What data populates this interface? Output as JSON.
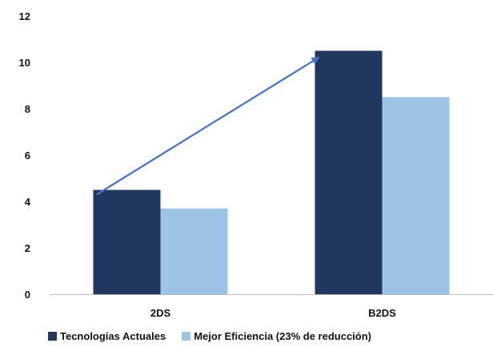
{
  "chart_data": {
    "type": "bar",
    "categories": [
      "2DS",
      "B2DS"
    ],
    "series": [
      {
        "name": "Tecnologías Actuales",
        "values": [
          4.5,
          10.5
        ],
        "color": "#22375f"
      },
      {
        "name": "Mejor Eficiencia (23% de reducción)",
        "values": [
          3.7,
          8.5
        ],
        "color": "#9dc3e6"
      }
    ],
    "title": "",
    "xlabel": "",
    "ylabel": "",
    "ylim": [
      0,
      12
    ],
    "yticks": [
      "0",
      "2",
      "4",
      "6",
      "8",
      "10",
      "12"
    ],
    "grid": false,
    "legend_position": "bottom",
    "annotations": [
      {
        "type": "arrow",
        "from": {
          "category": "2DS",
          "value": 4.3
        },
        "to": {
          "category": "B2DS",
          "value": 10.2
        },
        "color": "#4472c4"
      }
    ]
  }
}
